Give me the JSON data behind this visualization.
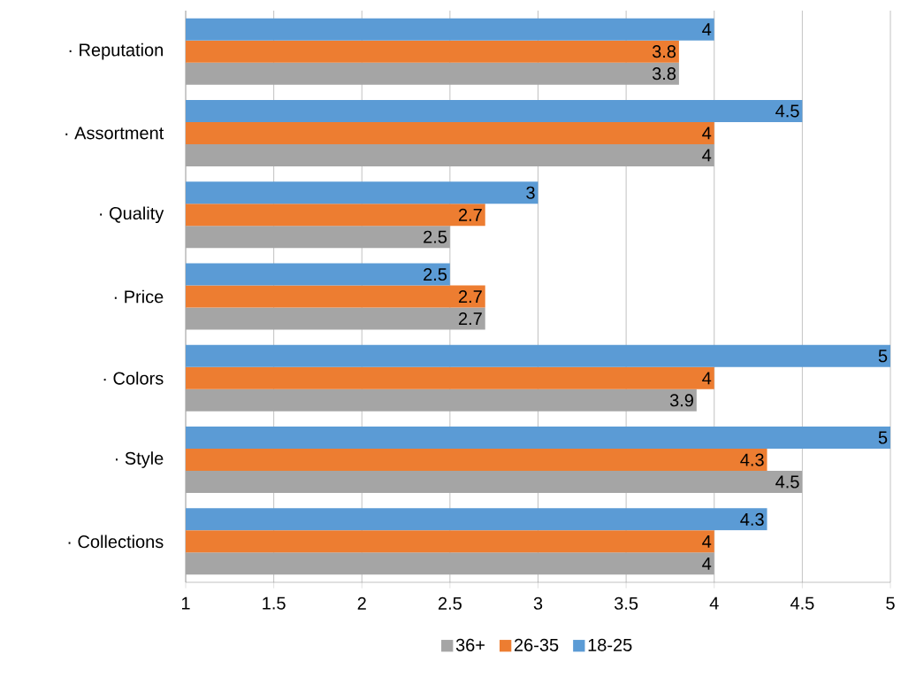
{
  "chart_data": {
    "type": "bar",
    "orientation": "horizontal",
    "categories": [
      "· Reputation",
      "· Assortment",
      "· Quality",
      "· Price",
      "· Colors",
      "· Style",
      "· Collections"
    ],
    "series": [
      {
        "name": "36+",
        "color": "#a5a5a5",
        "values": [
          3.8,
          4,
          2.5,
          2.7,
          3.9,
          4.5,
          4
        ]
      },
      {
        "name": "26-35",
        "color": "#ed7d31",
        "values": [
          3.8,
          4,
          2.7,
          2.7,
          4,
          4.3,
          4
        ]
      },
      {
        "name": "18-25",
        "color": "#5b9bd5",
        "values": [
          4,
          4.5,
          3,
          2.5,
          5,
          5,
          4.3
        ]
      }
    ],
    "xlim": [
      1,
      5
    ],
    "xticks": [
      1,
      1.5,
      2,
      2.5,
      3,
      3.5,
      4,
      4.5,
      5
    ],
    "grid": "x",
    "legend": "bottom",
    "data_labels": true
  }
}
